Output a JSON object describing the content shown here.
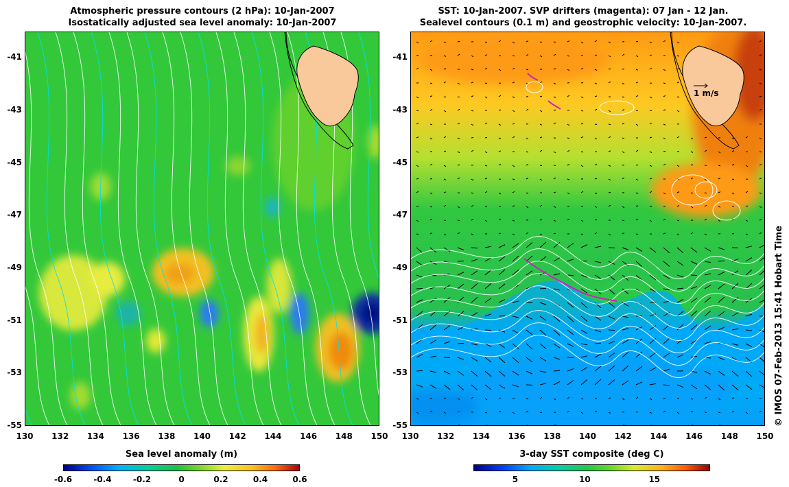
{
  "left_panel": {
    "title_line1": "Atmospheric pressure contours (2 hPa): 10-Jan-2007",
    "title_line2": "Isostatically adjusted sea level anomaly: 10-Jan-2007",
    "colorbar_title": "Sea level anomaly (m)",
    "colorbar_ticks": [
      "-0.6",
      "-0.4",
      "-0.2",
      "0",
      "0.2",
      "0.4",
      "0.6"
    ],
    "colorbar_range": [
      -0.6,
      0.6
    ]
  },
  "right_panel": {
    "title_line1": "SST: 10-Jan-2007. SVP drifters (magenta): 07 Jan - 12 Jan.",
    "title_line2": "Sealevel contours (0.1 m) and geostrophic velocity: 10-Jan-2007.",
    "colorbar_title": "3-day SST composite (deg C)",
    "colorbar_ticks": [
      "5",
      "10",
      "15"
    ],
    "colorbar_range": [
      2,
      19
    ],
    "scale_label": "1 m/s"
  },
  "axes": {
    "lat_labels": [
      "-41",
      "-43",
      "-45",
      "-47",
      "-49",
      "-51",
      "-53",
      "-55"
    ],
    "lon_labels": [
      "130",
      "132",
      "134",
      "136",
      "138",
      "140",
      "142",
      "144",
      "146",
      "148",
      "150"
    ],
    "lon_range": [
      130,
      150
    ],
    "lat_range": [
      -55,
      -40
    ]
  },
  "credit": "© IMOS 07-Feb-2013 15:41 Hobart Time",
  "colors": {
    "land": "#f9c89b",
    "drifter": "#d020c0",
    "background_green": "#33cc33"
  }
}
